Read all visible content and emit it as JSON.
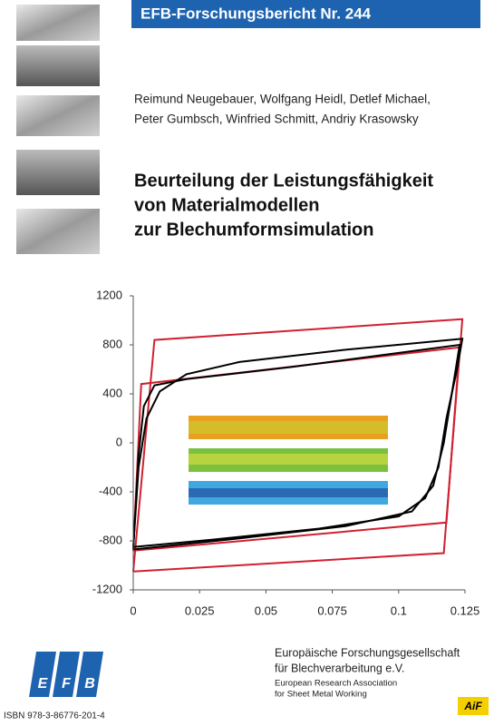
{
  "header": {
    "series_title": "EFB-Forschungsbericht Nr. 244"
  },
  "authors": [
    "Reimund Neugebauer, Wolfgang Heidl, Detlef Michael,",
    "Peter Gumbsch, Winfried Schmitt, Andriy Krasowsky"
  ],
  "title": [
    "Beurteilung der Leistungsfähigkeit",
    "von Materialmodellen",
    "zur Blechumformsimulation"
  ],
  "chart_data": {
    "type": "line",
    "xlim": [
      0,
      0.125
    ],
    "ylim": [
      -1200,
      1200
    ],
    "xticks": [
      0,
      0.025,
      0.05,
      0.075,
      0.1,
      0.125
    ],
    "yticks": [
      -1200,
      -800,
      -400,
      0,
      400,
      800,
      1200
    ],
    "series": [
      {
        "color": "#d02030",
        "x": [
          0,
          0.008,
          0.124,
          0.117,
          0
        ],
        "values": [
          -1050,
          840,
          1010,
          -900,
          -1050
        ]
      },
      {
        "color": "#d02030",
        "x": [
          0,
          0.003,
          0.123,
          0.118,
          0
        ],
        "values": [
          -880,
          480,
          780,
          -650,
          -880
        ]
      },
      {
        "color": "#000000",
        "x": [
          0,
          0.002,
          0.005,
          0.01,
          0.02,
          0.04,
          0.08,
          0.124,
          0.122,
          0.118,
          0.115,
          0.11,
          0.1,
          0.07,
          0.03,
          0
        ],
        "values": [
          -850,
          -200,
          200,
          420,
          560,
          660,
          760,
          850,
          600,
          200,
          -200,
          -450,
          -600,
          -700,
          -790,
          -850
        ]
      },
      {
        "color": "#000000",
        "x": [
          0,
          0.002,
          0.004,
          0.008,
          0.02,
          0.06,
          0.123,
          0.12,
          0.117,
          0.113,
          0.105,
          0.08,
          0.04,
          0
        ],
        "values": [
          -870,
          -100,
          300,
          470,
          520,
          620,
          800,
          400,
          0,
          -350,
          -560,
          -680,
          -780,
          -870
        ]
      }
    ]
  },
  "logo": {
    "letters": [
      "E",
      "F",
      "B"
    ]
  },
  "publisher": [
    "Europäische Forschungsgesellschaft",
    "für Blechverarbeitung e.V.",
    "European Research Association",
    "for Sheet Metal Working"
  ],
  "isbn": "ISBN 978-3-86776-201-4",
  "aif": "AiF"
}
